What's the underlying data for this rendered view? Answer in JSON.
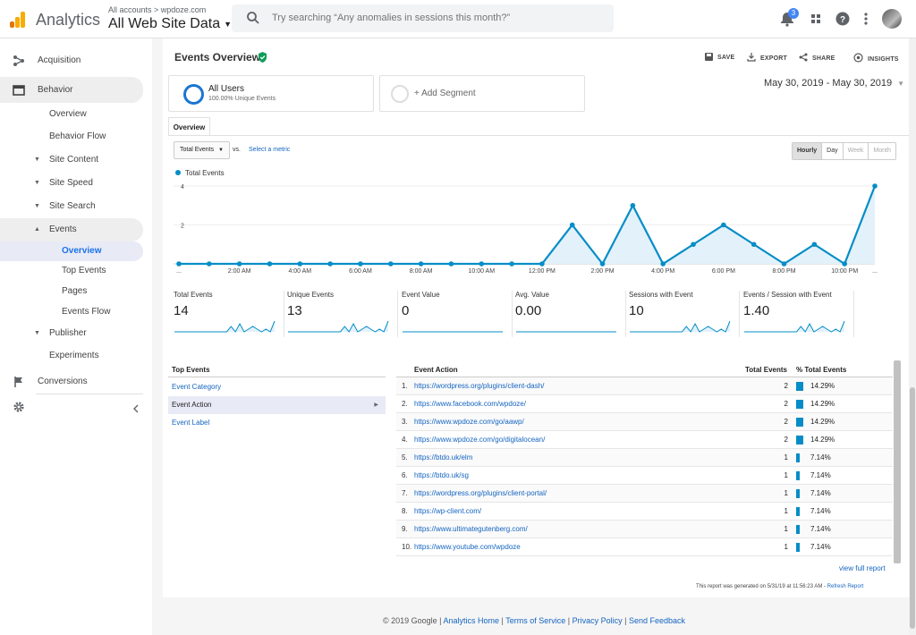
{
  "header": {
    "app_name": "Analytics",
    "account_crumb": "All accounts > wpdoze.com",
    "view_name": "All Web Site Data",
    "search_placeholder": "Try searching “Any anomalies in sessions this month?”",
    "notification_count": "3"
  },
  "sidebar": {
    "items": [
      {
        "label": "Acquisition"
      },
      {
        "label": "Behavior"
      },
      {
        "label": "Overview"
      },
      {
        "label": "Behavior Flow"
      },
      {
        "label": "Site Content"
      },
      {
        "label": "Site Speed"
      },
      {
        "label": "Site Search"
      },
      {
        "label": "Events"
      },
      {
        "label": "Overview"
      },
      {
        "label": "Top Events"
      },
      {
        "label": "Pages"
      },
      {
        "label": "Events Flow"
      },
      {
        "label": "Publisher"
      },
      {
        "label": "Experiments"
      },
      {
        "label": "Conversions"
      }
    ]
  },
  "page": {
    "title": "Events Overview",
    "actions": {
      "save": "SAVE",
      "export": "EXPORT",
      "share": "SHARE",
      "insights": "INSIGHTS"
    },
    "date_range": "May 30, 2019 - May 30, 2019"
  },
  "segments": {
    "all_users": {
      "name": "All Users",
      "sub": "100.00% Unique Events"
    },
    "add": "+ Add Segment"
  },
  "tabs": {
    "overview": "Overview"
  },
  "chart_controls": {
    "metric": "Total Events",
    "vs": "vs.",
    "select_metric": "Select a metric",
    "granularity": [
      "Hourly",
      "Day",
      "Week",
      "Month"
    ]
  },
  "chart_data": {
    "type": "area",
    "legend": "Total Events",
    "series_color": "#058dc7",
    "fill_color": "#e3f1fa",
    "ylim": [
      0,
      4
    ],
    "y_ticks": [
      "4",
      "2"
    ],
    "x_tick_labels": [
      "...",
      "2:00 AM",
      "4:00 AM",
      "6:00 AM",
      "8:00 AM",
      "10:00 AM",
      "12:00 PM",
      "2:00 PM",
      "4:00 PM",
      "6:00 PM",
      "8:00 PM",
      "10:00 PM",
      "..."
    ],
    "values": [
      0,
      0,
      0,
      0,
      0,
      0,
      0,
      0,
      0,
      0,
      0,
      0,
      0,
      2,
      0,
      3,
      0,
      1,
      2,
      1,
      0,
      1,
      0,
      4
    ]
  },
  "scorecards": [
    {
      "label": "Total Events",
      "value": "14"
    },
    {
      "label": "Unique Events",
      "value": "13"
    },
    {
      "label": "Event Value",
      "value": "0"
    },
    {
      "label": "Avg. Value",
      "value": "0.00"
    },
    {
      "label": "Sessions with Event",
      "value": "10"
    },
    {
      "label": "Events / Session with Event",
      "value": "1.40"
    }
  ],
  "top_events": {
    "header": "Top Events",
    "items": [
      "Event Category",
      "Event Action",
      "Event Label"
    ]
  },
  "table": {
    "headers": {
      "action": "Event Action",
      "total": "Total Events",
      "pct": "% Total Events"
    },
    "rows": [
      {
        "n": "1.",
        "action": "https://wordpress.org/plugins/client-dash/",
        "total": "2",
        "pct": "14.29%",
        "share": 0.1429
      },
      {
        "n": "2.",
        "action": "https://www.facebook.com/wpdoze/",
        "total": "2",
        "pct": "14.29%",
        "share": 0.1429
      },
      {
        "n": "3.",
        "action": "https://www.wpdoze.com/go/aawp/",
        "total": "2",
        "pct": "14.29%",
        "share": 0.1429
      },
      {
        "n": "4.",
        "action": "https://www.wpdoze.com/go/digitalocean/",
        "total": "2",
        "pct": "14.29%",
        "share": 0.1429
      },
      {
        "n": "5.",
        "action": "https://btdo.uk/elm",
        "total": "1",
        "pct": "7.14%",
        "share": 0.0714
      },
      {
        "n": "6.",
        "action": "https://btdo.uk/sg",
        "total": "1",
        "pct": "7.14%",
        "share": 0.0714
      },
      {
        "n": "7.",
        "action": "https://wordpress.org/plugins/client-portal/",
        "total": "1",
        "pct": "7.14%",
        "share": 0.0714
      },
      {
        "n": "8.",
        "action": "https://wp-client.com/",
        "total": "1",
        "pct": "7.14%",
        "share": 0.0714
      },
      {
        "n": "9.",
        "action": "https://www.ultimategutenberg.com/",
        "total": "1",
        "pct": "7.14%",
        "share": 0.0714
      },
      {
        "n": "10.",
        "action": "https://www.youtube.com/wpdoze",
        "total": "1",
        "pct": "7.14%",
        "share": 0.0714
      }
    ],
    "view_full": "view full report"
  },
  "generated": {
    "text": "This report was generated on 5/31/19 at 11:56:23 AM - ",
    "refresh": "Refresh Report"
  },
  "footer": {
    "copyright": "© 2019 Google",
    "links": [
      "Analytics Home",
      "Terms of Service",
      "Privacy Policy",
      "Send Feedback"
    ]
  }
}
